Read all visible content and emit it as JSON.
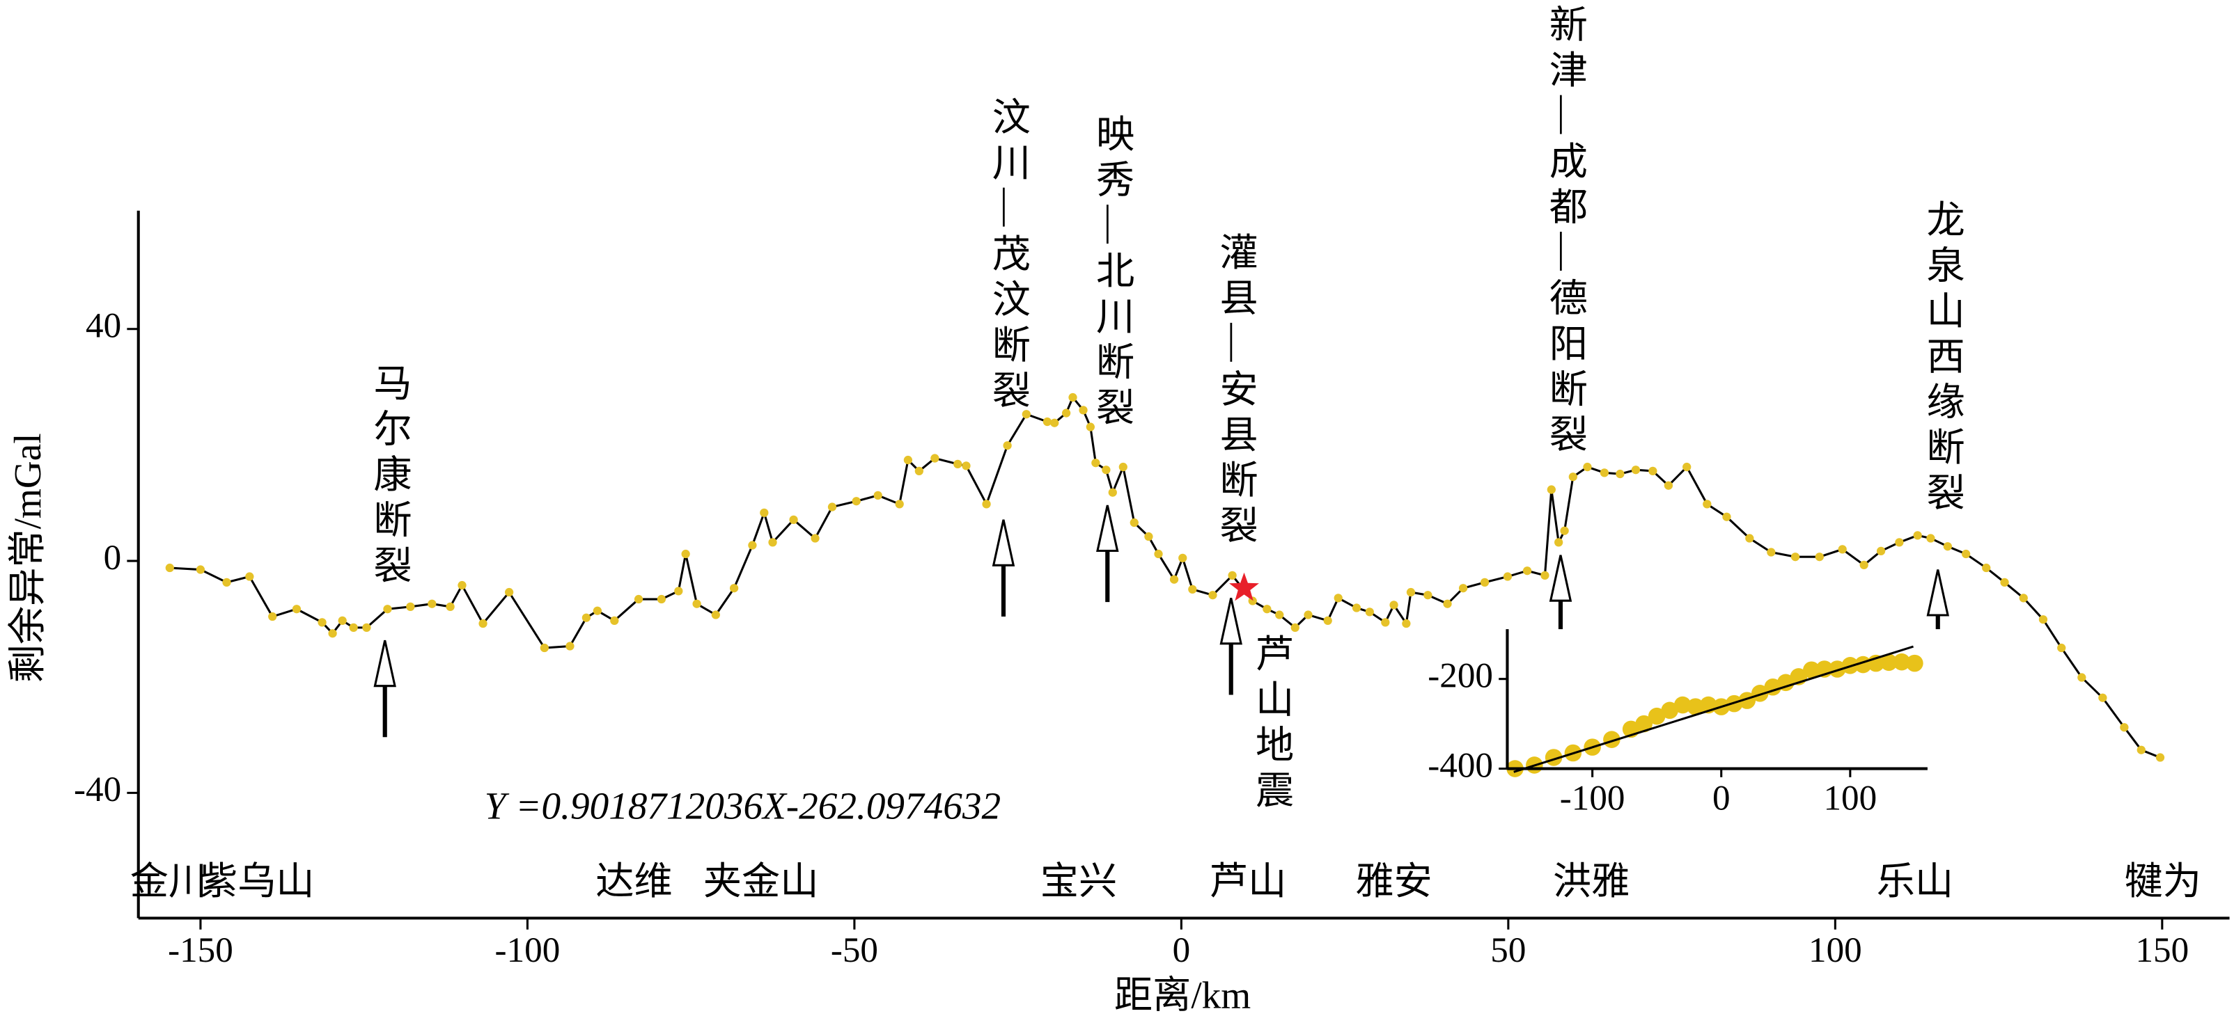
{
  "chart_data": [
    {
      "type": "line",
      "xlabel": "距离/km",
      "ylabel": "剩余异常/mGal",
      "xlim": [
        -159.5,
        160.3
      ],
      "ylim": [
        -61.6,
        60.4
      ],
      "xticks": [
        -150,
        -100,
        -50,
        0,
        50,
        100,
        150
      ],
      "yticks": [
        -40,
        0,
        40
      ],
      "x": [
        -154.7,
        -150,
        -146,
        -142.5,
        -139,
        -135.3,
        -131.4,
        -129.8,
        -128.3,
        -126.6,
        -124.6,
        -121.4,
        -117.9,
        -114.6,
        -111.8,
        -110,
        -106.8,
        -102.8,
        -97.4,
        -93.5,
        -91,
        -89.3,
        -86.7,
        -83,
        -79.5,
        -76.9,
        -75.8,
        -74.1,
        -71.2,
        -68.4,
        -65.6,
        -63.8,
        -62.5,
        -59.3,
        -56,
        -53.4,
        -49.7,
        -46.4,
        -43.1,
        -41.8,
        -40.1,
        -37.7,
        -34.2,
        -32.9,
        -29.8,
        -26.6,
        -23.7,
        -20.5,
        -19.4,
        -17.6,
        -16.6,
        -15,
        -13.9,
        -13.1,
        -11.5,
        -10.5,
        -8.9,
        -7.2,
        -5,
        -3.5,
        -1.1,
        0.2,
        1.7,
        4.8,
        7.8,
        10.9,
        13.1,
        15,
        17.4,
        19.4,
        22.4,
        24,
        26.8,
        28.8,
        31.2,
        32.5,
        34.4,
        35.1,
        37.7,
        40.7,
        43.1,
        46.4,
        49.9,
        52.9,
        55.6,
        56.6,
        57.7,
        58.6,
        59.9,
        62.1,
        64.7,
        67.1,
        69.5,
        72.1,
        74.5,
        77.3,
        80.4,
        83.4,
        86.9,
        90.2,
        93.9,
        97.6,
        101.1,
        104.4,
        107,
        109.8,
        112.6,
        114.6,
        117.2,
        120,
        123.1,
        125.9,
        128.8,
        131.8,
        134.6,
        137.7,
        140.9,
        144.2,
        146.8,
        149.7
      ],
      "series": [
        {
          "color": "#000000",
          "marker_color": "#e6c229",
          "values": [
            -1.2,
            -1.5,
            -3.7,
            -2.7,
            -9.6,
            -8.3,
            -10.6,
            -12.5,
            -10.3,
            -11.5,
            -11.5,
            -8.3,
            -7.9,
            -7.4,
            -7.9,
            -4.2,
            -10.8,
            -5.4,
            -15,
            -14.7,
            -9.8,
            -8.6,
            -10.3,
            -6.6,
            -6.6,
            -5.2,
            1.2,
            -7.4,
            -9.3,
            -4.7,
            2.7,
            8.3,
            3.2,
            7.1,
            3.9,
            9.3,
            10.3,
            11.3,
            9.8,
            17.4,
            15.5,
            17.7,
            16.7,
            16.4,
            9.8,
            19.9,
            25.3,
            24,
            23.8,
            25.5,
            28.2,
            26,
            23.1,
            16.9,
            15.7,
            11.8,
            16.2,
            6.6,
            4.2,
            1.2,
            -3.2,
            0.5,
            -4.9,
            -5.9,
            -2.5,
            -6.9,
            -8.3,
            -9.3,
            -11.5,
            -9.3,
            -10.3,
            -6.4,
            -8.1,
            -8.8,
            -10.6,
            -7.6,
            -10.8,
            -5.4,
            -5.9,
            -7.4,
            -4.7,
            -3.7,
            -2.7,
            -1.7,
            -2.5,
            12.3,
            3.2,
            5.2,
            14.5,
            16.2,
            15.2,
            15,
            15.7,
            15.5,
            13,
            16.2,
            9.8,
            7.6,
            3.9,
            1.5,
            0.7,
            0.7,
            2,
            -0.7,
            1.7,
            3.2,
            4.4,
            3.9,
            2.5,
            1.2,
            -1.2,
            -3.7,
            -6.4,
            -10.1,
            -15,
            -20.1,
            -23.6,
            -28.7,
            -32.6,
            -33.9
          ]
        }
      ],
      "annotations": [
        {
          "text": "马尔康断裂",
          "x": -121.8,
          "y": -13.7
        },
        {
          "text": "汶川—茂汶断裂",
          "x": -27.2,
          "y": 7.1
        },
        {
          "text": "映秀—北川断裂",
          "x": -11.3,
          "y": 9.6
        },
        {
          "text": "灌县—安县断裂",
          "x": 7.6,
          "y": -6.4
        },
        {
          "text": "新津—成都—德阳断裂",
          "x": 58,
          "y": 1
        },
        {
          "text": "龙泉山西缘断裂",
          "x": 115.7,
          "y": -1.5
        }
      ],
      "star": {
        "text": "芦山地震",
        "x": 9.6,
        "y": -4.7,
        "color": "#e8202a"
      },
      "places": [
        {
          "text": "金川",
          "x": -154.9
        },
        {
          "text": "紫乌山",
          "x": -141.4
        },
        {
          "text": "达维",
          "x": -83.7
        },
        {
          "text": "夹金山",
          "x": -64.3
        },
        {
          "text": "宝兴",
          "x": -15.7
        },
        {
          "text": "芦山",
          "x": 10.2
        },
        {
          "text": "雅安",
          "x": 32.5
        },
        {
          "text": "洪雅",
          "x": 62.7
        },
        {
          "text": "乐山",
          "x": 112.2
        },
        {
          "text": "犍为",
          "x": 150.1
        }
      ]
    },
    {
      "type": "scatter",
      "equation": "Y =0.9018712036X-262.0974632",
      "xlim": [
        -166,
        160
      ],
      "ylim": [
        -400,
        -89
      ],
      "xticks": [
        -100,
        0,
        100
      ],
      "yticks": [
        -400,
        -200
      ],
      "color": "#e8c21a",
      "x": [
        -160,
        -145,
        -130,
        -115,
        -100,
        -85,
        -70,
        -60,
        -50,
        -40,
        -30,
        -20,
        -10,
        0,
        10,
        20,
        30,
        40,
        50,
        60,
        70,
        80,
        90,
        100,
        110,
        120,
        130,
        140,
        150
      ],
      "values": [
        -400,
        -392,
        -375,
        -365,
        -352,
        -335,
        -312,
        -300,
        -283,
        -270,
        -258,
        -262,
        -258,
        -262,
        -255,
        -248,
        -232,
        -218,
        -208,
        -195,
        -180,
        -178,
        -178,
        -170,
        -168,
        -165,
        -163,
        -162,
        -165
      ],
      "fit_line": {
        "x": [
          -161,
          149
        ],
        "y": [
          -407.3,
          -127.7
        ],
        "color": "#000000"
      }
    }
  ]
}
